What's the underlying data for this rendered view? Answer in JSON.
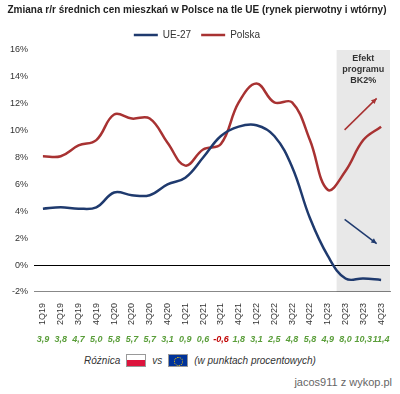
{
  "chart_data": {
    "type": "line",
    "title": "Zmiana r/r średnich cen mieszkań w Polsce na tle UE (rynek pierwotny i wtórny)",
    "categories": [
      "1Q19",
      "2Q19",
      "3Q19",
      "4Q19",
      "1Q20",
      "2Q20",
      "3Q20",
      "4Q20",
      "1Q21",
      "2Q21",
      "3Q21",
      "4Q21",
      "1Q22",
      "2Q22",
      "3Q22",
      "4Q22",
      "1Q23",
      "2Q23",
      "3Q23",
      "4Q23"
    ],
    "series": [
      {
        "name": "UE-27",
        "color": "#1f3a6e",
        "values": [
          4.2,
          4.3,
          4.2,
          4.3,
          5.4,
          5.2,
          5.2,
          6.0,
          6.5,
          8.0,
          9.6,
          10.3,
          10.4,
          9.6,
          7.3,
          3.5,
          0.7,
          -1.0,
          -1.0,
          -1.1
        ]
      },
      {
        "name": "Polska",
        "color": "#a83232",
        "values": [
          8.1,
          8.1,
          8.9,
          9.3,
          11.2,
          10.9,
          10.9,
          9.1,
          7.4,
          8.6,
          9.0,
          12.1,
          13.5,
          12.1,
          12.1,
          9.3,
          5.6,
          7.0,
          9.3,
          10.3
        ]
      }
    ],
    "ylim": [
      -2,
      16
    ],
    "yticks": [
      {
        "value": -2,
        "label": "-2%"
      },
      {
        "value": 0,
        "label": "0%"
      },
      {
        "value": 2,
        "label": "2%"
      },
      {
        "value": 4,
        "label": "4%"
      },
      {
        "value": 6,
        "label": "6%"
      },
      {
        "value": 8,
        "label": "8%"
      },
      {
        "value": 10,
        "label": "10%"
      },
      {
        "value": 12,
        "label": "12%"
      },
      {
        "value": 14,
        "label": "14%"
      },
      {
        "value": 16,
        "label": "16%"
      }
    ],
    "grid": false,
    "legend": "top",
    "annotations": [
      {
        "text": [
          "Efekt",
          "programu",
          "BK2%"
        ],
        "x_from": "2Q23",
        "x_to": "4Q23"
      }
    ],
    "differences": {
      "label": "Różnica",
      "vs": "vs",
      "unit_note": "(w punktach procentowych)",
      "values": [
        3.9,
        3.8,
        4.7,
        5.0,
        5.8,
        5.7,
        5.7,
        3.1,
        0.9,
        0.6,
        -0.6,
        1.8,
        3.1,
        2.5,
        4.8,
        5.8,
        4.9,
        8.0,
        10.3,
        11.4
      ],
      "value_labels": [
        "3,9",
        "3,8",
        "4,7",
        "5,0",
        "5,8",
        "5,7",
        "5,7",
        "3,1",
        "0,9",
        "0,6",
        "-0,6",
        "1,8",
        "3,1",
        "2,5",
        "4,8",
        "5,8",
        "4,9",
        "8,0",
        "10,3",
        "11,4"
      ]
    },
    "watermark": "jacos911 z wykop.pl"
  }
}
